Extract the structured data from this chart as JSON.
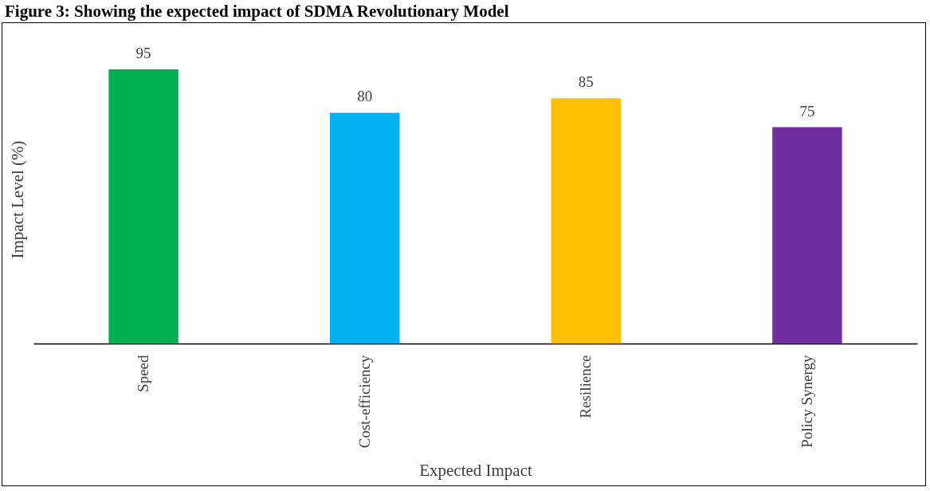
{
  "chart_data": {
    "type": "bar",
    "title": "Figure 3: Showing the expected impact of SDMA Revolutionary Model",
    "xlabel": "Expected Impact",
    "ylabel": "Impact Level (%)",
    "categories": [
      "Speed",
      "Cost-efficiency",
      "Resilience",
      "Policy Synergy"
    ],
    "values": [
      95,
      80,
      85,
      75
    ],
    "colors": [
      "#00b050",
      "#00b0f0",
      "#ffc000",
      "#7030a0"
    ],
    "data_labels": true,
    "grid": false,
    "legend": false,
    "tick_labels": "x"
  }
}
